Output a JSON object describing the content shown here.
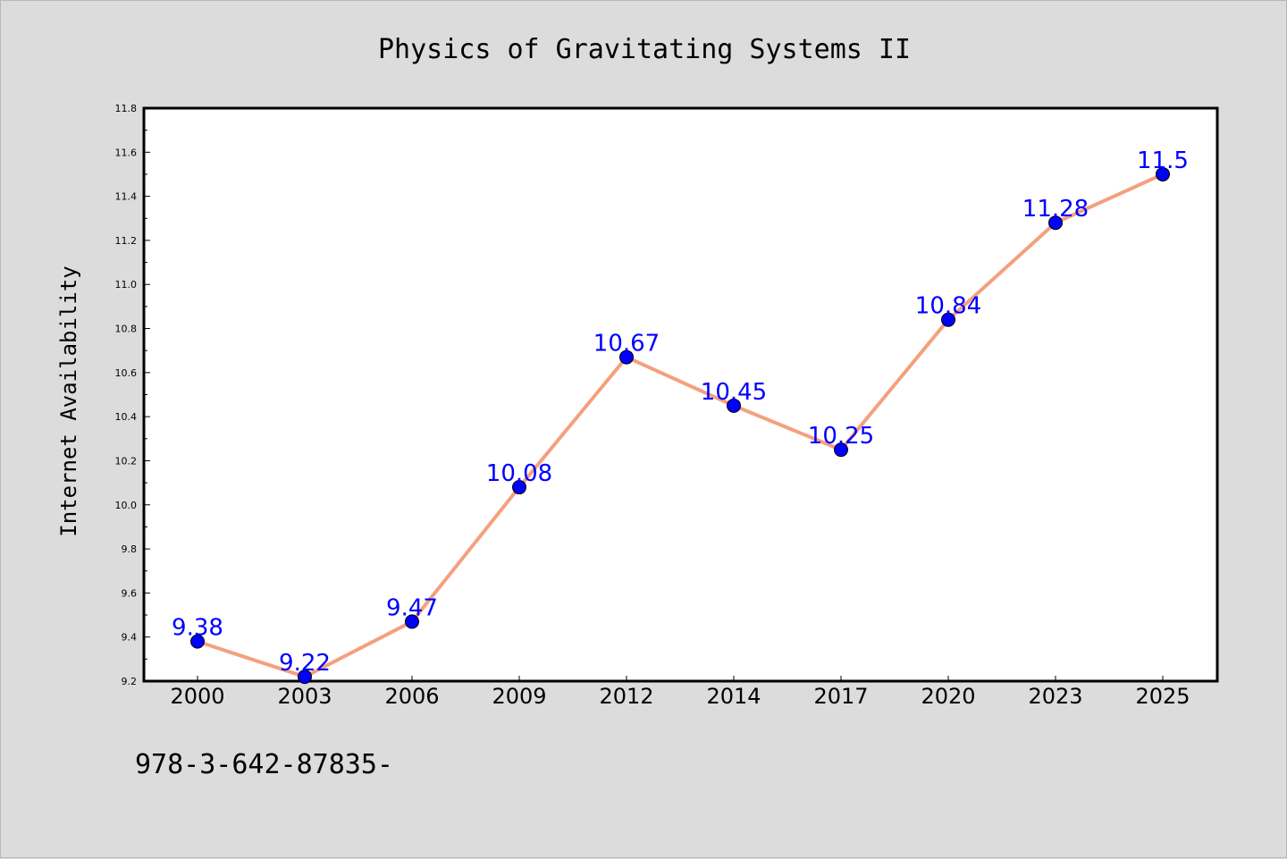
{
  "chart_data": {
    "type": "line",
    "title": "Physics of Gravitating Systems II",
    "ylabel": "Internet Availability",
    "xlabel": "",
    "categories": [
      "2000",
      "2003",
      "2006",
      "2009",
      "2012",
      "2014",
      "2017",
      "2020",
      "2023",
      "2025"
    ],
    "values": [
      9.38,
      9.22,
      9.47,
      10.08,
      10.67,
      10.45,
      10.25,
      10.84,
      11.28,
      11.5
    ],
    "data_labels": [
      "9.38",
      "9.22",
      "9.47",
      "10.08",
      "10.67",
      "10.45",
      "10.25",
      "10.84",
      "11.28",
      "11.5"
    ],
    "ylim": [
      9.2,
      11.8
    ],
    "yticks": [
      "9.2",
      "9.4",
      "9.6",
      "9.8",
      "10.0",
      "10.2",
      "10.4",
      "10.6",
      "10.8",
      "11.0",
      "11.2",
      "11.4",
      "11.6",
      "11.8"
    ],
    "grid": false,
    "colors": {
      "line": "#f4a07e",
      "marker": "#0000ff",
      "label": "#0000ff",
      "background": "#dcdcdc",
      "plot_background": "#ffffff"
    }
  },
  "footer_text": "978-3-642-87835-"
}
